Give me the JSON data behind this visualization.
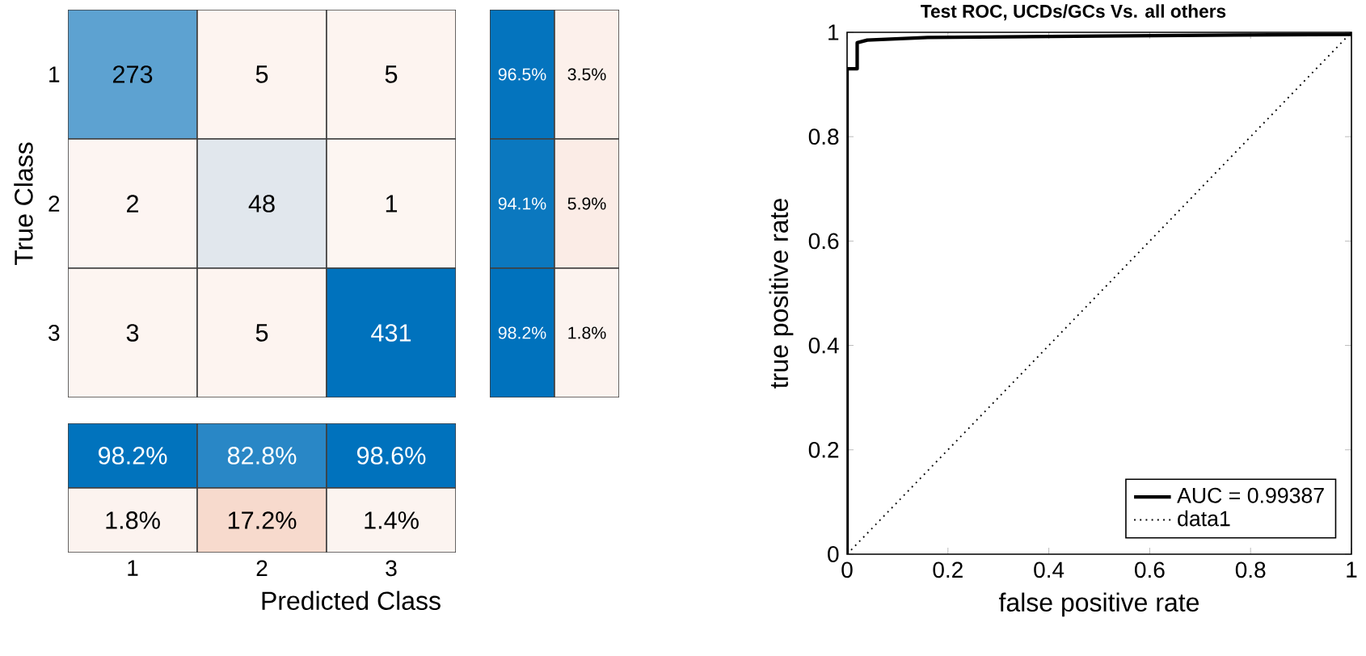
{
  "chart_data": [
    {
      "type": "heatmap",
      "ylabel": "True Class",
      "categories": [
        null,
        null,
        null
      ],
      "y_categories": [
        "1",
        "2",
        "3"
      ],
      "cells": [
        [
          273,
          5,
          5
        ],
        [
          2,
          48,
          1
        ],
        [
          3,
          5,
          431
        ]
      ],
      "cell_labels": [
        [
          "273",
          "5",
          "5"
        ],
        [
          "2",
          "48",
          "1"
        ],
        [
          "3",
          "5",
          "431"
        ]
      ],
      "tick_labels": "y"
    },
    {
      "type": "heatmap",
      "categories": [
        null,
        null
      ],
      "y_categories": [
        null,
        null,
        null
      ],
      "cells": [
        [
          96.5,
          3.5
        ],
        [
          94.1,
          5.9
        ],
        [
          98.2,
          1.8
        ]
      ],
      "cell_labels": [
        [
          "96.5%",
          "3.5%"
        ],
        [
          "94.1%",
          "5.9%"
        ],
        [
          "98.2%",
          "1.8%"
        ]
      ],
      "tick_labels": false
    },
    {
      "type": "heatmap",
      "xlabel": "Predicted Class",
      "categories": [
        "1",
        "2",
        "3"
      ],
      "y_categories": [
        null,
        null
      ],
      "cells": [
        [
          98.2,
          82.8,
          98.6
        ],
        [
          1.8,
          17.2,
          1.4
        ]
      ],
      "cell_labels": [
        [
          "98.2%",
          "82.8%",
          "98.6%"
        ],
        [
          "1.8%",
          "17.2%",
          "1.4%"
        ]
      ],
      "tick_labels": "x"
    },
    {
      "type": "line",
      "title": "Test ROC, UCDs/GCs Vs. all others",
      "xlabel": "false positive rate",
      "ylabel": "true positive rate",
      "xlim": [
        0,
        1
      ],
      "ylim": [
        0,
        1
      ],
      "xticks": [
        0,
        0.2,
        0.4,
        0.6,
        0.8,
        1
      ],
      "yticks": [
        0,
        0.2,
        0.4,
        0.6,
        0.8,
        1
      ],
      "legend": "bottom right",
      "grid": false,
      "series": [
        {
          "name": "AUC = 0.99387",
          "color": "#000000",
          "line_style": "solid",
          "x": [
            0,
            0,
            0.02,
            0.02,
            0.04,
            0.16,
            0.5,
            1,
            1
          ],
          "values": [
            0,
            0.93,
            0.93,
            0.98,
            0.985,
            0.99,
            0.993,
            0.996,
            1
          ]
        },
        {
          "name": "data1",
          "color": "#000000",
          "line_style": "dotted",
          "x": [
            0,
            1
          ],
          "values": [
            0,
            1
          ]
        }
      ]
    }
  ]
}
